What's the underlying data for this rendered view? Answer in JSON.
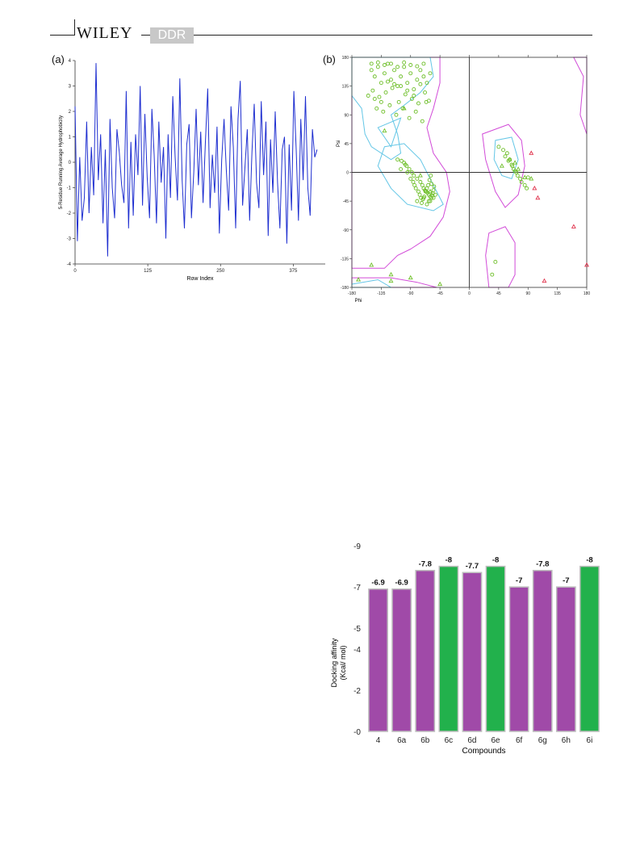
{
  "header": {
    "brand": "WILEY",
    "journal": "DDR"
  },
  "panels": {
    "a_label": "(a)",
    "b_label": "(b)"
  },
  "chart_data": [
    {
      "type": "line",
      "panel": "(a)",
      "xlabel": "Row Index",
      "ylabel": "5-Residue Running Average Hydrophobicity",
      "xlim": [
        0,
        430
      ],
      "ylim": [
        -4,
        4
      ],
      "xticks": [
        "0",
        "125",
        "250",
        "375"
      ],
      "yticks": [
        "4",
        "3",
        "2",
        "1",
        "0",
        "-1",
        "-2",
        "-3",
        "-4"
      ],
      "color": "#1f2fd0",
      "series": [
        {
          "x": [
            0,
            4,
            8,
            12,
            16,
            20,
            24,
            28,
            32,
            36,
            40,
            44,
            48,
            52,
            56,
            60,
            64,
            68,
            72,
            76,
            80,
            84,
            88,
            92,
            96,
            100,
            104,
            108,
            112,
            116,
            120,
            124,
            128,
            132,
            136,
            140,
            144,
            148,
            152,
            156,
            160,
            164,
            168,
            172,
            176,
            180,
            184,
            188,
            192,
            196,
            200,
            204,
            208,
            212,
            216,
            220,
            224,
            228,
            232,
            236,
            240,
            244,
            248,
            252,
            256,
            260,
            264,
            268,
            272,
            276,
            280,
            284,
            288,
            292,
            296,
            300,
            304,
            308,
            312,
            316,
            320,
            324,
            328,
            332,
            336,
            340,
            344,
            348,
            352,
            356,
            360,
            364,
            368,
            372,
            376,
            380,
            384,
            388,
            392,
            396,
            400,
            404,
            408,
            412,
            416
          ],
          "y": [
            2.2,
            -3.1,
            0.2,
            -2.3,
            -1.4,
            1.6,
            -2.0,
            0.6,
            -1.3,
            3.9,
            -0.7,
            1.1,
            -2.4,
            0.5,
            -3.7,
            1.7,
            -1.0,
            -2.2,
            1.3,
            0.4,
            -0.9,
            -1.6,
            2.8,
            -2.6,
            0.8,
            -2.1,
            1.1,
            -0.5,
            3.0,
            -1.7,
            1.9,
            -0.6,
            -2.2,
            2.1,
            0.3,
            -2.4,
            1.6,
            -0.8,
            0.6,
            -3.0,
            1.1,
            -1.4,
            2.6,
            0.2,
            -1.5,
            3.3,
            -0.7,
            -2.6,
            0.7,
            1.5,
            -2.2,
            -0.4,
            2.1,
            -0.9,
            1.2,
            -1.6,
            0.8,
            2.9,
            -1.8,
            0.3,
            -1.2,
            1.4,
            -2.8,
            0.1,
            1.7,
            -0.3,
            -1.9,
            2.2,
            0.6,
            -2.6,
            1.7,
            3.2,
            -1.7,
            -0.2,
            1.3,
            -2.3,
            0.4,
            2.3,
            -0.8,
            -1.8,
            2.4,
            -0.5,
            1.6,
            -2.9,
            0.9,
            -1.2,
            2.0,
            -0.8,
            -2.6,
            0.5,
            1.0,
            -3.2,
            0.7,
            -1.9,
            2.8,
            0.5,
            -2.3,
            1.7,
            -0.7,
            2.6,
            -1.0,
            -2.1,
            1.3,
            0.2,
            0.5
          ]
        }
      ]
    },
    {
      "type": "scatter",
      "panel": "(b)",
      "xlabel": "Phi",
      "ylabel": "Psi",
      "xlim": [
        -180,
        180
      ],
      "ylim": [
        -180,
        180
      ],
      "xticks": [
        "-180",
        "-135",
        "-90",
        "-45",
        "0",
        "45",
        "90",
        "135",
        "180"
      ],
      "yticks": [
        "180",
        "135",
        "90",
        "45",
        "0",
        "-45",
        "-90",
        "-135",
        "-180"
      ],
      "colors": {
        "favored": "#6fbf2a",
        "glycine": "#6fbf2a",
        "outlier": "#e0304a",
        "core_contour": "#63c6e6",
        "allowed_contour": "#d24bd8"
      },
      "series": [
        {
          "marker": "circle",
          "x": [
            -150,
            -145,
            -140,
            -135,
            -130,
            -125,
            -120,
            -115,
            -110,
            -105,
            -100,
            -95,
            -90,
            -85,
            -80,
            -75,
            -70,
            -65,
            -60,
            -155,
            -148,
            -138,
            -128,
            -118,
            -108,
            -98,
            -88,
            -78,
            -68,
            -62,
            -142,
            -132,
            -122,
            -112,
            -102,
            -92,
            -82,
            -72,
            -66,
            -150,
            -140,
            -130,
            -120,
            -110,
            -100,
            -90,
            -80,
            -70,
            -125,
            -115,
            -105,
            -95,
            -85,
            -75,
            -145,
            -135,
            -105,
            -95,
            -85,
            -80,
            -75,
            -72,
            -70,
            -68,
            -66,
            -64,
            -62,
            -60,
            -58,
            -56,
            -55,
            -54,
            -90,
            -86,
            -84,
            -82,
            -78,
            -76,
            -74,
            -71,
            -69,
            -67,
            -65,
            -63,
            -61,
            -59,
            -57,
            -100,
            -96,
            -92,
            -88,
            -80,
            -73,
            -65,
            -60,
            -55,
            -52,
            -110,
            -104,
            -98,
            -70,
            -62,
            -58,
            45,
            52,
            58,
            62,
            65,
            68,
            72,
            55,
            60,
            66,
            70,
            74,
            78,
            85,
            80,
            88,
            90,
            40,
            35
          ],
          "y": [
            160,
            150,
            165,
            140,
            155,
            170,
            145,
            160,
            135,
            150,
            165,
            140,
            155,
            130,
            145,
            160,
            150,
            140,
            155,
            120,
            128,
            118,
            125,
            132,
            110,
            122,
            115,
            108,
            125,
            112,
            100,
            95,
            105,
            90,
            100,
            85,
            95,
            80,
            110,
            170,
            172,
            168,
            170,
            165,
            172,
            168,
            166,
            170,
            142,
            138,
            135,
            128,
            120,
            138,
            115,
            110,
            5,
            0,
            -5,
            -10,
            -15,
            -20,
            -25,
            -28,
            -30,
            -32,
            -35,
            -38,
            -40,
            -33,
            -28,
            -22,
            -10,
            -15,
            -20,
            -25,
            -30,
            -35,
            -40,
            -42,
            -38,
            -30,
            -25,
            -20,
            -12,
            -5,
            -36,
            15,
            10,
            5,
            0,
            -45,
            -48,
            -50,
            -45,
            -40,
            -35,
            20,
            18,
            12,
            -40,
            -45,
            -18,
            40,
            35,
            30,
            20,
            12,
            5,
            0,
            25,
            18,
            10,
            2,
            -5,
            -10,
            -20,
            -15,
            -25,
            -8,
            -140,
            -160
          ]
        },
        {
          "marker": "triangle",
          "x": [
            -130,
            -100,
            -75,
            -60,
            -150,
            -120,
            -90,
            50,
            62,
            70,
            75,
            85,
            95,
            -170,
            -120,
            -45
          ],
          "y": [
            65,
            100,
            -5,
            -30,
            -145,
            -160,
            -165,
            10,
            20,
            15,
            5,
            -8,
            -10,
            -168,
            -170,
            -175
          ]
        },
        {
          "marker": "outlier-triangle",
          "x": [
            95,
            100,
            105,
            160,
            115,
            180
          ],
          "y": [
            30,
            -25,
            -40,
            -85,
            -170,
            -145
          ]
        }
      ]
    },
    {
      "type": "bar",
      "xlabel": "Compounds",
      "ylabel": "Docking affinity\n(Kcal/ mol)",
      "ylim": [
        0,
        -9
      ],
      "yticks": [
        "-9",
        "-7",
        "-5",
        "-4",
        "-2",
        "-0"
      ],
      "categories": [
        "4",
        "6a",
        "6b",
        "6c",
        "6d",
        "6e",
        "6f",
        "6g",
        "6h",
        "6i"
      ],
      "values": [
        -6.9,
        -6.9,
        -7.8,
        -8,
        -7.7,
        -8,
        -7,
        -7.8,
        -7,
        -8
      ],
      "value_labels": [
        "-6.9",
        "-6.9",
        "-7.8",
        "-8",
        "-7.7",
        "-8",
        "-7",
        "-7.8",
        "-7",
        "-8"
      ],
      "colors": [
        "#a04aa8",
        "#a04aa8",
        "#a04aa8",
        "#22b14c",
        "#a04aa8",
        "#22b14c",
        "#a04aa8",
        "#a04aa8",
        "#a04aa8",
        "#22b14c"
      ]
    }
  ]
}
